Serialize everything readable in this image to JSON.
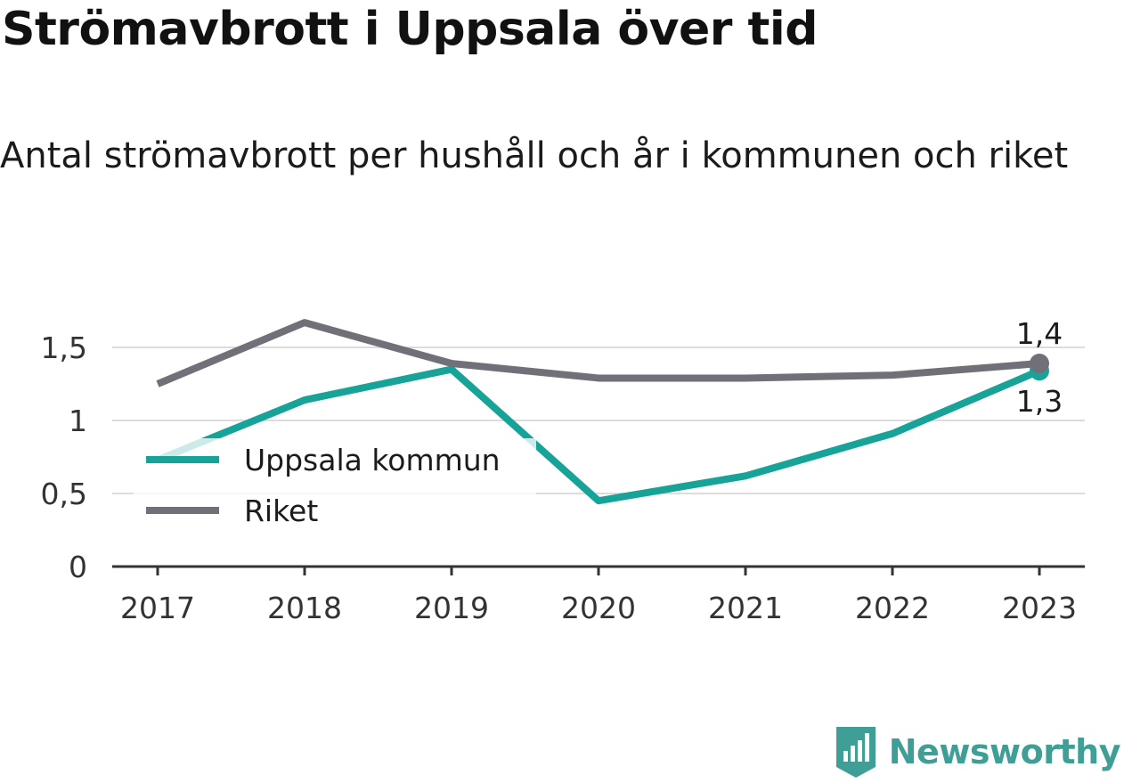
{
  "header": {
    "title": "Strömavbrott i Uppsala över tid",
    "subtitle": "Antal strömavbrott per hushåll och år i kommunen och riket"
  },
  "brand": {
    "name": "Newsworthy",
    "icon": "bar-chart-icon",
    "color": "#3f9e96"
  },
  "chart_data": {
    "type": "line",
    "title": "",
    "xlabel": "",
    "ylabel": "",
    "categories": [
      "2017",
      "2018",
      "2019",
      "2020",
      "2021",
      "2022",
      "2023"
    ],
    "y_ticks": [
      0,
      0.5,
      1,
      1.5
    ],
    "y_tick_labels": [
      "0",
      "0,5",
      "1",
      "1,5"
    ],
    "ylim": [
      0,
      1.75
    ],
    "grid": true,
    "legend_placement": "middle-left",
    "series": [
      {
        "name": "Uppsala kommun",
        "color": "#17a398",
        "values": [
          0.73,
          1.14,
          1.35,
          0.45,
          0.62,
          0.91,
          1.34
        ],
        "end_label": "1,3",
        "end_label_position": "below"
      },
      {
        "name": "Riket",
        "color": "#707079",
        "values": [
          1.25,
          1.67,
          1.39,
          1.29,
          1.29,
          1.31,
          1.39
        ],
        "end_label": "1,4",
        "end_label_position": "above"
      }
    ]
  }
}
